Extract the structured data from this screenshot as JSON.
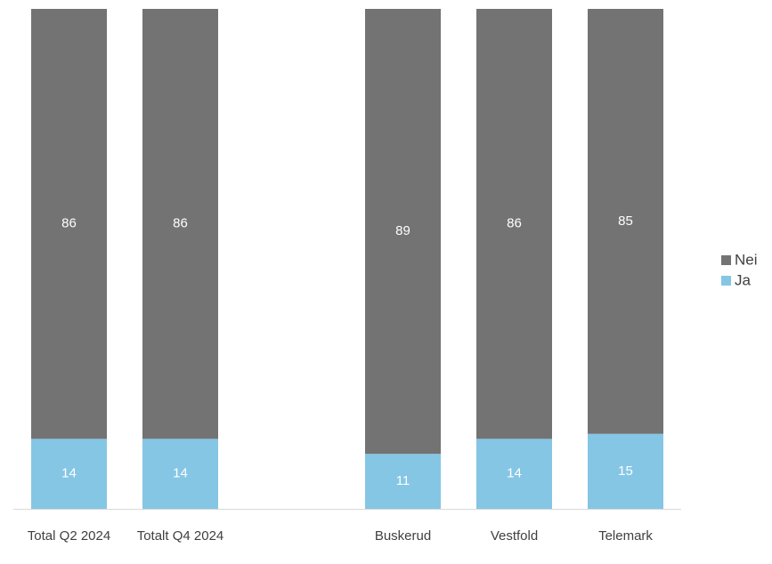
{
  "chart_data": {
    "type": "stacked_bar",
    "categories": [
      "Total Q2 2024",
      "Totalt Q4 2024",
      null,
      "Buskerud",
      "Vestfold",
      "Telemark"
    ],
    "series": [
      {
        "name": "Ja",
        "color": "#85c6e4",
        "values": [
          14,
          14,
          null,
          11,
          14,
          15
        ]
      },
      {
        "name": "Nei",
        "color": "#737373",
        "values": [
          86,
          86,
          null,
          89,
          86,
          85
        ]
      }
    ],
    "ylim": [
      0,
      100
    ],
    "legend": "right"
  }
}
